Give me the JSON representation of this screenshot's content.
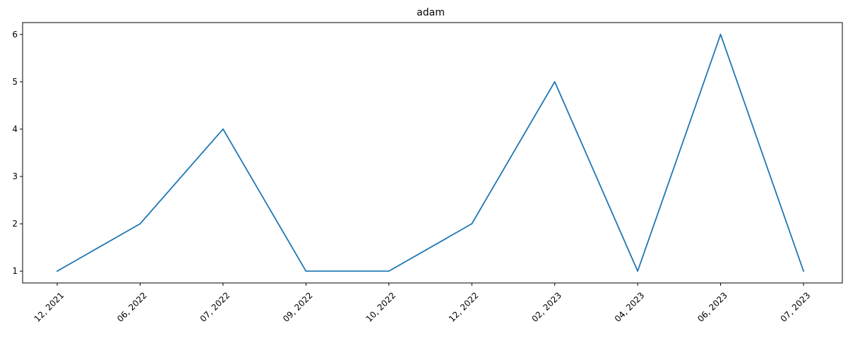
{
  "chart_data": {
    "type": "line",
    "title": "adam",
    "xlabel": "",
    "ylabel": "",
    "categories": [
      "12, 2021",
      "06, 2022",
      "07, 2022",
      "09, 2022",
      "10, 2022",
      "12, 2022",
      "02, 2023",
      "04, 2023",
      "06, 2023",
      "07, 2023"
    ],
    "series": [
      {
        "values": [
          1,
          2,
          4,
          1,
          1,
          2,
          5,
          1,
          6,
          1
        ],
        "color": "#1f77b4"
      }
    ],
    "yticks": [
      1,
      2,
      3,
      4,
      5,
      6
    ],
    "ylim": [
      0.75,
      6.25
    ],
    "grid": false,
    "legend": "none"
  }
}
